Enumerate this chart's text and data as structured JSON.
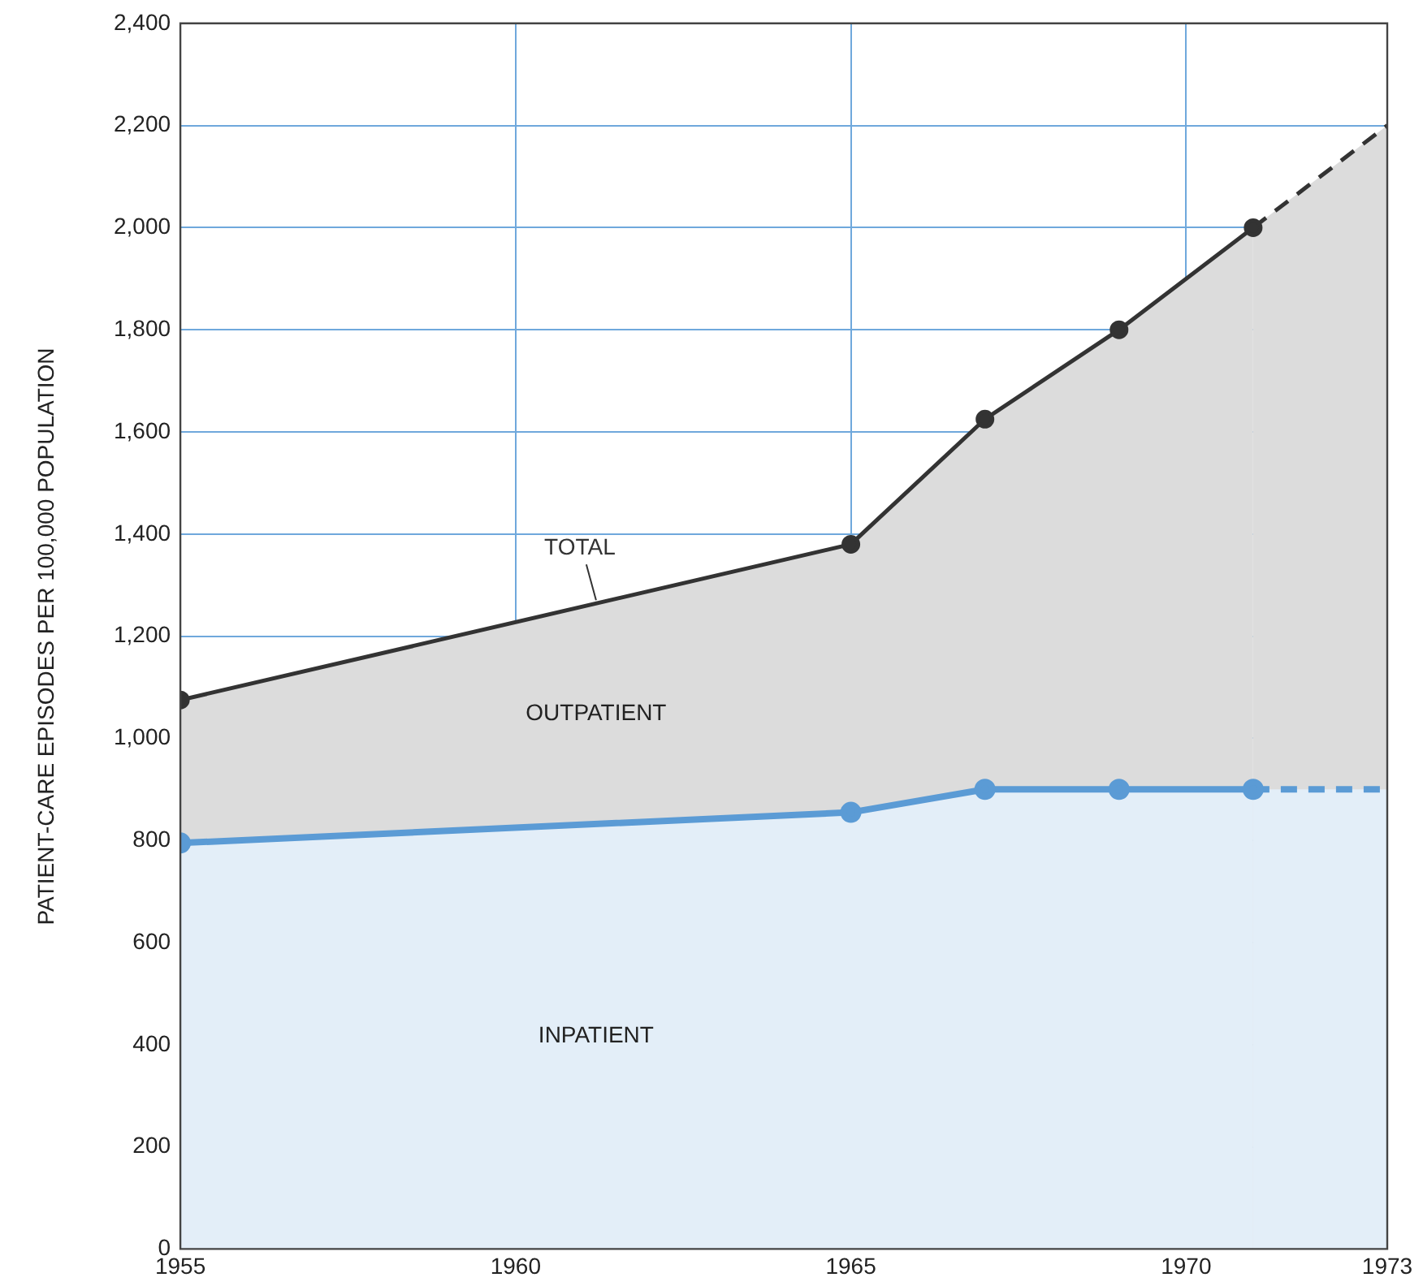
{
  "chart_data": {
    "type": "area",
    "ylabel": "PATIENT-CARE EPISODES PER 100,000 POPULATION",
    "xlim": [
      1955,
      1973
    ],
    "xticks": [
      1955,
      1960,
      1965,
      1970,
      1973
    ],
    "ylim": [
      0,
      2400
    ],
    "yticks": [
      0,
      200,
      400,
      600,
      800,
      {
        "value": 1000,
        "label": "1,000"
      },
      {
        "value": 1200,
        "label": "1,200"
      },
      {
        "value": 1400,
        "label": "1,400"
      },
      {
        "value": 1600,
        "label": "1,600"
      },
      {
        "value": 1800,
        "label": "1,800"
      },
      {
        "value": 2000,
        "label": "2,000"
      },
      {
        "value": 2200,
        "label": "2,200"
      },
      {
        "value": 2400,
        "label": "2,400"
      }
    ],
    "grid": true,
    "legend": false,
    "series": [
      {
        "name": "INPATIENT",
        "color": "#5b9bd5",
        "x": [
          1955,
          1965,
          1967,
          1969,
          1971
        ],
        "values": [
          795,
          855,
          900,
          900,
          900
        ],
        "marker": "circle",
        "line_style": "solid"
      },
      {
        "color": "#5b9bd5",
        "x": [
          1971,
          1973
        ],
        "values": [
          900,
          900
        ],
        "marker": "none",
        "line_style": "dashed"
      },
      {
        "name": "TOTAL",
        "color": "#333333",
        "x": [
          1955,
          1965,
          1967,
          1969,
          1971
        ],
        "values": [
          1075,
          1380,
          1625,
          1800,
          2000
        ],
        "marker": "circle",
        "line_style": "solid"
      },
      {
        "color": "#333333",
        "x": [
          1971,
          1973
        ],
        "values": [
          2000,
          2200
        ],
        "marker": "none",
        "line_style": "dashed"
      }
    ],
    "annotations": [
      "OUTPATIENT"
    ]
  }
}
